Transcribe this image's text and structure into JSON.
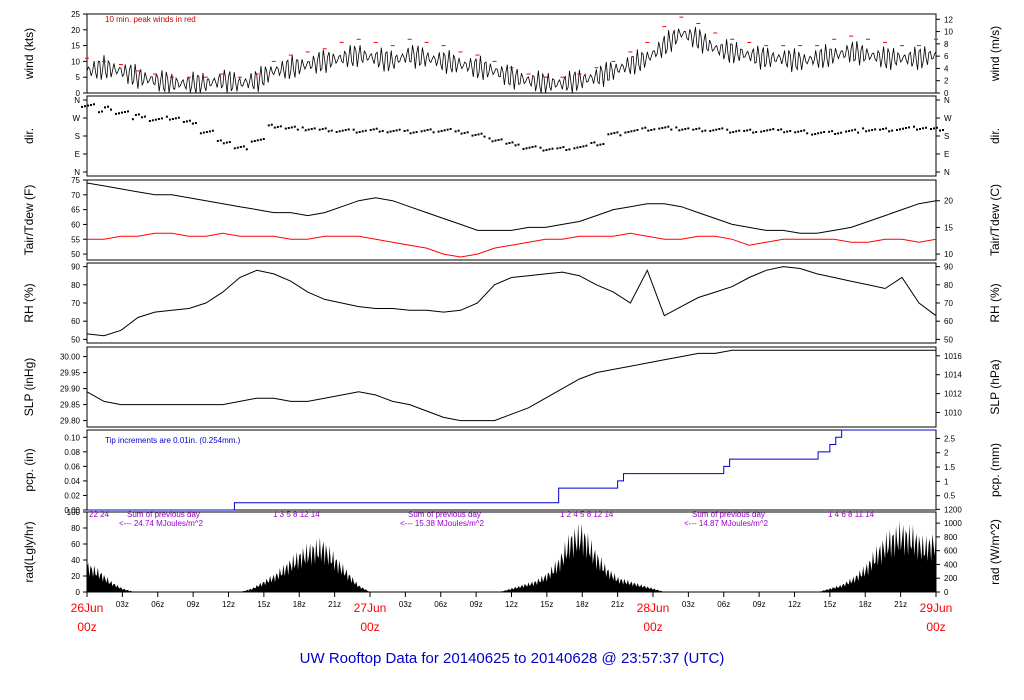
{
  "title": "UW Rooftop Data for 20140625  to  20140628 @ 23:57:37  (UTC)",
  "colors": {
    "black": "#000000",
    "red": "#ff0000",
    "blue": "#0000cc",
    "purple": "#9900cc"
  },
  "chart_data": [
    {
      "type": "line",
      "id": "wind",
      "ylabel_left": "wind (kts)",
      "ylabel_right": "wind (m/s)",
      "ylim": [
        0,
        25
      ],
      "yticks": [
        0,
        5,
        10,
        15,
        20,
        25
      ],
      "yticks_right": [
        0,
        2,
        4,
        6,
        8,
        10,
        12
      ],
      "annotation": "10 min. peak winds in red",
      "series": [
        {
          "values": [
            7,
            8,
            7,
            5,
            4,
            3,
            3,
            3,
            4,
            3,
            4,
            7,
            8,
            9,
            10,
            11,
            12,
            11,
            10,
            12,
            11,
            10,
            9,
            8,
            7,
            5,
            4,
            3,
            3,
            4,
            5,
            7,
            9,
            11,
            15,
            19,
            17,
            14,
            13,
            12,
            11,
            11,
            10,
            11,
            12,
            13,
            12,
            11,
            11,
            11,
            12
          ]
        },
        {
          "values": [
            11,
            10,
            9,
            7,
            6,
            5,
            5,
            5,
            6,
            5,
            6,
            10,
            12,
            13,
            14,
            16,
            17,
            16,
            15,
            17,
            16,
            15,
            13,
            12,
            10,
            8,
            6,
            5,
            5,
            6,
            8,
            10,
            13,
            16,
            21,
            24,
            22,
            19,
            17,
            16,
            15,
            15,
            15,
            15,
            17,
            18,
            17,
            16,
            15,
            15,
            17
          ]
        }
      ]
    },
    {
      "type": "scatter",
      "id": "dir",
      "ylabel_left": "dir.",
      "ylabel_right": "dir.",
      "yticks_labels": [
        "N",
        "E",
        "S",
        "W",
        "N"
      ],
      "x": [
        0,
        1,
        2,
        3,
        4,
        5,
        6,
        7,
        8,
        9,
        10,
        11,
        12,
        13,
        14,
        15,
        16,
        17,
        18,
        19,
        20,
        21,
        22,
        23,
        24,
        25,
        26,
        27,
        28,
        29,
        30,
        31,
        32,
        33,
        34,
        35,
        36,
        37,
        38,
        39,
        40,
        41,
        42,
        43,
        44,
        45,
        46,
        47,
        48,
        49,
        50
      ],
      "values": [
        340,
        320,
        300,
        280,
        260,
        270,
        250,
        200,
        150,
        120,
        160,
        230,
        220,
        215,
        210,
        205,
        205,
        210,
        205,
        200,
        205,
        210,
        200,
        185,
        160,
        140,
        120,
        115,
        118,
        125,
        140,
        190,
        205,
        215,
        220,
        215,
        210,
        210,
        205,
        205,
        208,
        205,
        200,
        195,
        198,
        205,
        210,
        210,
        215,
        220,
        215
      ]
    },
    {
      "type": "line",
      "id": "temp",
      "ylabel_left": "Tair/Tdew (F)",
      "ylabel_right": "Tair/Tdew (C)",
      "ylim": [
        48,
        75
      ],
      "yticks": [
        50,
        55,
        60,
        65,
        70,
        75
      ],
      "yticks_right": [
        10,
        15,
        20
      ],
      "series": [
        {
          "values": [
            74,
            73,
            72,
            71,
            70,
            70,
            69,
            68,
            67,
            66,
            65,
            64,
            64,
            63,
            64,
            66,
            68,
            69,
            68,
            66,
            64,
            62,
            60,
            58,
            58,
            58,
            59,
            59,
            60,
            61,
            63,
            65,
            66,
            67,
            67,
            66,
            64,
            62,
            60,
            59,
            58,
            58,
            57,
            57,
            58,
            59,
            61,
            63,
            65,
            67,
            68
          ]
        },
        {
          "values": [
            55,
            55,
            56,
            56,
            57,
            57,
            56,
            56,
            57,
            56,
            56,
            56,
            55,
            55,
            56,
            56,
            56,
            55,
            54,
            53,
            52,
            50,
            49,
            50,
            52,
            53,
            54,
            55,
            55,
            56,
            56,
            56,
            57,
            56,
            55,
            55,
            56,
            56,
            55,
            53,
            54,
            55,
            55,
            55,
            55,
            54,
            54,
            55,
            55,
            54,
            55
          ]
        }
      ]
    },
    {
      "type": "line",
      "id": "rh",
      "ylabel_left": "RH (%)",
      "ylabel_right": "RH (%)",
      "ylim": [
        48,
        92
      ],
      "yticks": [
        50,
        60,
        70,
        80,
        90
      ],
      "series": [
        {
          "values": [
            53,
            52,
            55,
            62,
            65,
            66,
            67,
            70,
            76,
            84,
            88,
            86,
            82,
            76,
            72,
            70,
            68,
            67,
            67,
            66,
            66,
            65,
            66,
            70,
            80,
            84,
            85,
            86,
            87,
            85,
            80,
            76,
            70,
            88,
            63,
            68,
            73,
            76,
            79,
            84,
            88,
            90,
            89,
            86,
            84,
            82,
            80,
            78,
            84,
            70,
            63
          ]
        }
      ]
    },
    {
      "type": "line",
      "id": "slp",
      "ylabel_left": "SLP (inHg)",
      "ylabel_right": "SLP (hPa)",
      "ylim": [
        29.78,
        30.03
      ],
      "yticks": [
        29.8,
        29.85,
        29.9,
        29.95,
        30.0
      ],
      "yticks_labels": [
        "29.80",
        "29.85",
        "29.90",
        "29.95",
        "30.00"
      ],
      "yticks_right": [
        1010,
        1012,
        1014,
        1016
      ],
      "series": [
        {
          "values": [
            29.89,
            29.86,
            29.85,
            29.85,
            29.85,
            29.85,
            29.85,
            29.85,
            29.85,
            29.86,
            29.87,
            29.87,
            29.86,
            29.86,
            29.87,
            29.88,
            29.89,
            29.88,
            29.86,
            29.85,
            29.83,
            29.81,
            29.8,
            29.8,
            29.8,
            29.82,
            29.84,
            29.87,
            29.9,
            29.93,
            29.95,
            29.96,
            29.97,
            29.98,
            29.99,
            30.0,
            30.01,
            30.01,
            30.02,
            30.02,
            30.02,
            30.02,
            30.02,
            30.02,
            30.02,
            30.02,
            30.02,
            30.02,
            30.02,
            30.02,
            30.02
          ]
        }
      ]
    },
    {
      "type": "line",
      "id": "pcp",
      "ylabel_left": "pcp. (in)",
      "ylabel_right": "pcp. (mm)",
      "ylim": [
        0,
        0.11
      ],
      "yticks": [
        0,
        0.02,
        0.04,
        0.06,
        0.08,
        0.1
      ],
      "yticks_labels": [
        "0.00",
        "0.02",
        "0.04",
        "0.06",
        "0.08",
        "0.10"
      ],
      "yticks_right": [
        0.5,
        1,
        1.5,
        2,
        2.5
      ],
      "yticks_right_labels": [
        "0.5",
        "1",
        "1.5",
        "2",
        "2.5"
      ],
      "annotation": "Tip increments are 0.01in. (0.254mm.)",
      "steps": [
        [
          0,
          0
        ],
        [
          12.5,
          0.01
        ],
        [
          40,
          0.03
        ],
        [
          45,
          0.04
        ],
        [
          45.5,
          0.05
        ],
        [
          54,
          0.06
        ],
        [
          54.5,
          0.07
        ],
        [
          62,
          0.08
        ],
        [
          63,
          0.09
        ],
        [
          63.5,
          0.1
        ],
        [
          64,
          0.11
        ],
        [
          72,
          0.11
        ]
      ]
    },
    {
      "type": "area",
      "id": "rad",
      "ylabel_left": "rad(Lgly/hr)",
      "ylabel_right": "rad (W/m^2)",
      "ylim": [
        0,
        100
      ],
      "yticks": [
        0,
        20,
        40,
        60,
        80,
        100
      ],
      "yticks_right": [
        0,
        200,
        400,
        600,
        800,
        1000,
        1200
      ],
      "annotations": [
        {
          "hours": "22  24",
          "summary": "Sum of previous day",
          "energy": "<--- 24.74 MJoules/m^2"
        },
        {
          "hours": "1    3    5    8   12   14",
          "summary": "Sum of previous day",
          "energy": "<--- 15.38 MJoules/m^2"
        },
        {
          "hours": "1    2   4    5    8     12   14",
          "summary": "Sum of previous day",
          "energy": "<--- 14.87 MJoules/m^2"
        },
        {
          "hours": "1    4    6   8   11   14"
        }
      ],
      "series": [
        {
          "values": [
            40,
            30,
            15,
            5,
            0,
            0,
            0,
            0,
            0,
            0,
            0,
            0,
            0,
            0,
            5,
            15,
            25,
            40,
            55,
            65,
            70,
            50,
            30,
            10,
            0,
            0,
            0,
            0,
            0,
            0,
            0,
            0,
            0,
            0,
            0,
            0,
            5,
            10,
            15,
            25,
            45,
            80,
            90,
            60,
            35,
            20,
            15,
            10,
            5,
            0,
            0,
            0,
            0,
            0,
            0,
            0,
            0,
            0,
            0,
            0,
            0,
            0,
            0,
            5,
            10,
            20,
            35,
            60,
            80,
            90,
            85,
            70,
            80
          ]
        }
      ]
    }
  ],
  "x_axis": {
    "hour_labels": [
      "03z",
      "06z",
      "09z",
      "12z",
      "15z",
      "18z",
      "21z",
      "03z",
      "06z",
      "09z",
      "12z",
      "15z",
      "18z",
      "21z",
      "03z",
      "06z",
      "09z",
      "12z",
      "15z",
      "18z",
      "21z"
    ],
    "day_labels": [
      {
        "date": "26Jun",
        "time": "00z"
      },
      {
        "date": "27Jun",
        "time": "00z"
      },
      {
        "date": "28Jun",
        "time": "00z"
      },
      {
        "date": "29Jun",
        "time": "00z"
      }
    ]
  }
}
